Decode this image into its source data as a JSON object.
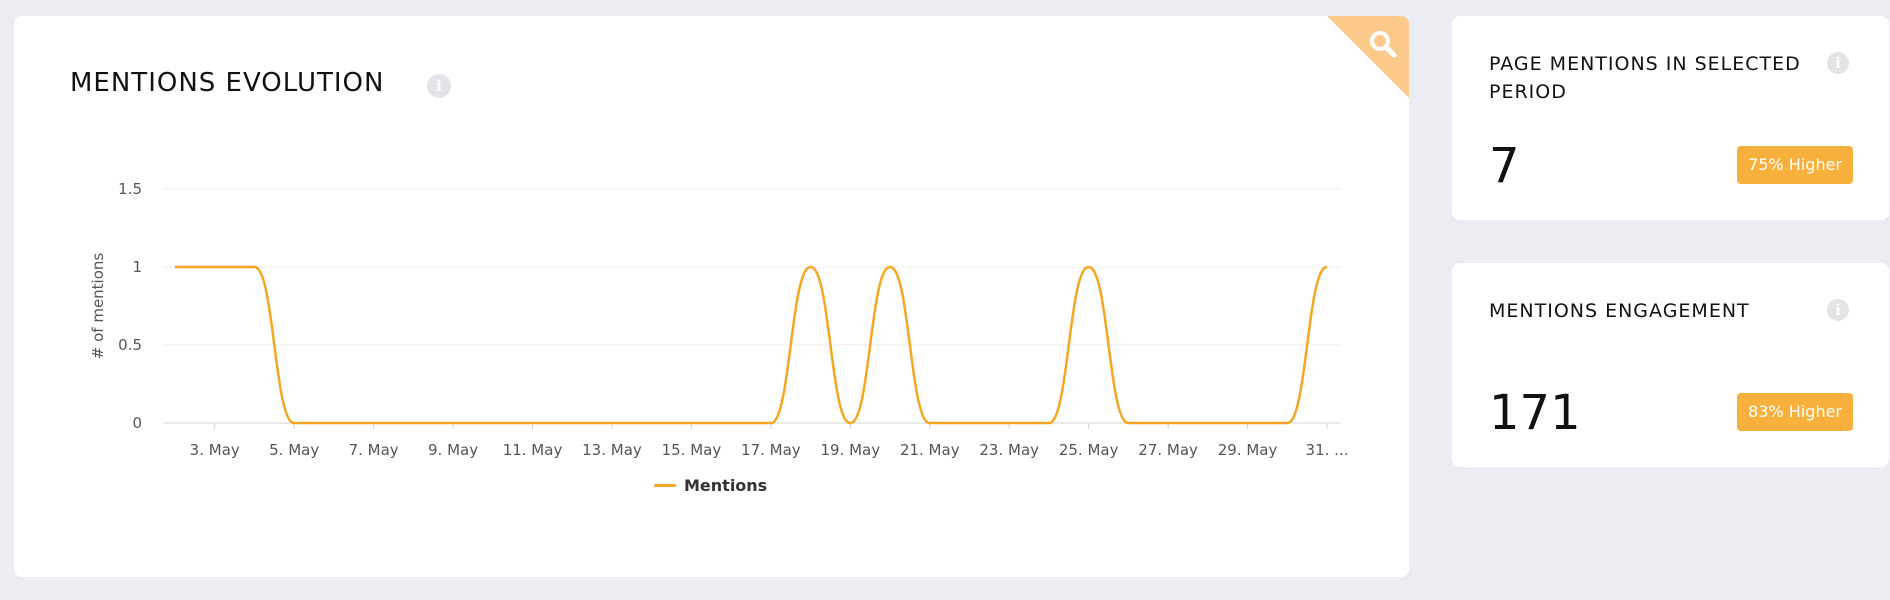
{
  "main": {
    "title": "MENTIONS EVOLUTION",
    "info_icon": "info-icon",
    "corner_icon": "search-icon",
    "corner_color": "#fbc98a"
  },
  "chart_data": {
    "type": "line",
    "ylabel": "# of mentions",
    "ylim": [
      0,
      1.5
    ],
    "yticks": [
      "0",
      "0.5",
      "1",
      "1.5"
    ],
    "x_tick_labels": [
      "3. May",
      "5. May",
      "7. May",
      "9. May",
      "11. May",
      "13. May",
      "15. May",
      "17. May",
      "19. May",
      "21. May",
      "23. May",
      "25. May",
      "27. May",
      "29. May",
      "31. ..."
    ],
    "x": [
      "2. May",
      "3. May",
      "4. May",
      "5. May",
      "6. May",
      "7. May",
      "8. May",
      "9. May",
      "10. May",
      "11. May",
      "12. May",
      "13. May",
      "14. May",
      "15. May",
      "16. May",
      "17. May",
      "18. May",
      "19. May",
      "20. May",
      "21. May",
      "22. May",
      "23. May",
      "24. May",
      "25. May",
      "26. May",
      "27. May",
      "28. May",
      "29. May",
      "30. May",
      "31. May"
    ],
    "series": [
      {
        "name": "Mentions",
        "color": "#f5a623",
        "values": [
          1,
          1,
          1,
          0,
          0,
          0,
          0,
          0,
          0,
          0,
          0,
          0,
          0,
          0,
          0,
          0,
          1,
          0,
          1,
          0,
          0,
          0,
          0,
          1,
          0,
          0,
          0,
          0,
          0,
          1
        ]
      }
    ],
    "grid": true,
    "legend": "bottom-center"
  },
  "stats": [
    {
      "title": "PAGE MENTIONS IN SELECTED PERIOD",
      "value": "7",
      "badge": "75% Higher",
      "badge_color": "#f7b03b",
      "info_icon": "info-icon"
    },
    {
      "title": "MENTIONS ENGAGEMENT",
      "value": "171",
      "badge": "83% Higher",
      "badge_color": "#f7b03b",
      "info_icon": "info-icon"
    }
  ]
}
